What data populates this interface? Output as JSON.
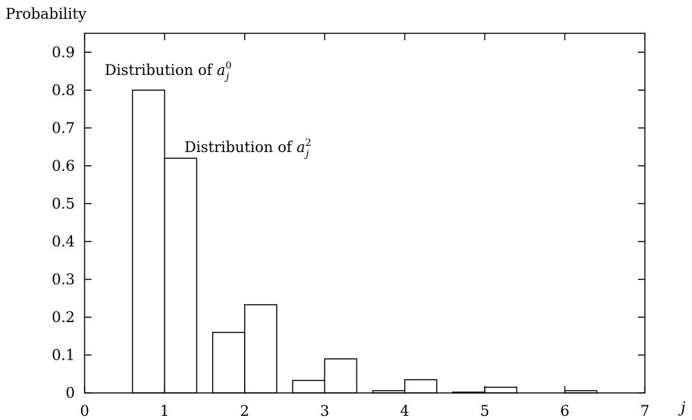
{
  "chart_data": {
    "type": "bar",
    "ylabel": "Probability",
    "xlabel": "j",
    "xlim": [
      0,
      7
    ],
    "ylim": [
      0,
      0.95
    ],
    "x_ticks": [
      "0",
      "1",
      "2",
      "3",
      "4",
      "5",
      "6",
      "7"
    ],
    "y_ticks": [
      "0",
      "0.1",
      "0.2",
      "0.3",
      "0.4",
      "0.5",
      "0.6",
      "0.7",
      "0.8",
      "0.9"
    ],
    "x_tick_values": [
      0,
      1,
      2,
      3,
      4,
      5,
      6,
      7
    ],
    "y_tick_values": [
      0,
      0.1,
      0.2,
      0.3,
      0.4,
      0.5,
      0.6,
      0.7,
      0.8,
      0.9
    ],
    "grid": false,
    "bar_width": 0.4,
    "series": [
      {
        "x": [
          1,
          2,
          3,
          4,
          5,
          6
        ],
        "values": [
          0.8,
          0.16,
          0.033,
          0.006,
          0.002,
          0.0
        ],
        "offset": -0.2
      },
      {
        "x": [
          1,
          2,
          3,
          4,
          5,
          6
        ],
        "values": [
          0.62,
          0.233,
          0.09,
          0.035,
          0.015,
          0.006
        ],
        "offset": 0.2
      }
    ],
    "annotations": [
      {
        "prefix": "Distribution of ",
        "var": "a",
        "sub": "j",
        "sup": "0"
      },
      {
        "prefix": "Distribution of ",
        "var": "a",
        "sub": "j",
        "sup": "2"
      }
    ]
  }
}
